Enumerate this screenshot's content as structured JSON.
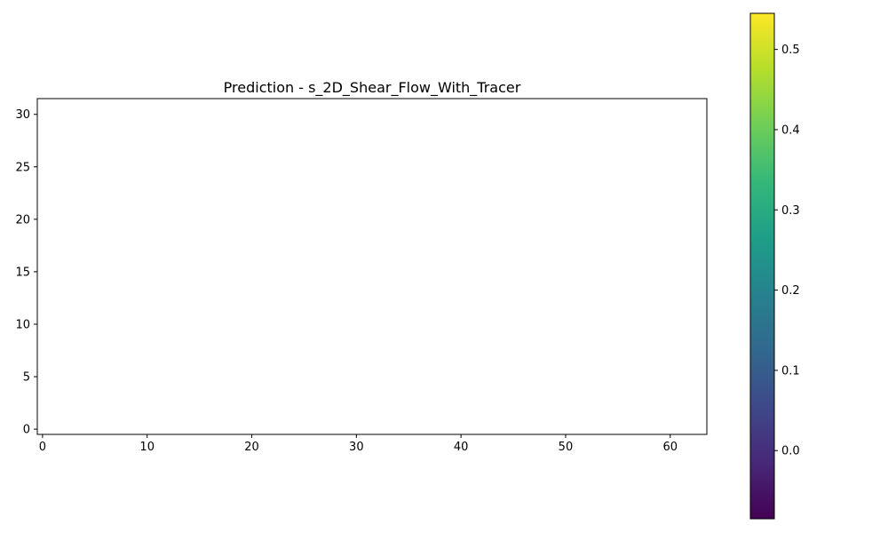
{
  "chart_data": {
    "type": "heatmap",
    "title": "Prediction - s_2D_Shear_Flow_With_Tracer",
    "xlabel": "",
    "ylabel": "",
    "xlim": [
      -0.5,
      63.5
    ],
    "ylim": [
      -0.5,
      31.5
    ],
    "x_ticks": [
      0,
      10,
      20,
      30,
      40,
      50,
      60
    ],
    "y_ticks": [
      0,
      5,
      10,
      15,
      20,
      25,
      30
    ],
    "values": [],
    "colormap": "viridis",
    "colorbar": {
      "range": [
        -0.085,
        0.545
      ],
      "ticks": [
        0.0,
        0.1,
        0.2,
        0.3,
        0.4,
        0.5
      ],
      "tick_labels": [
        "0.0",
        "0.1",
        "0.2",
        "0.3",
        "0.4",
        "0.5"
      ]
    },
    "grid": false
  },
  "colors": {
    "axis": "#000000",
    "background": "#ffffff",
    "viridis": [
      "#440154",
      "#482878",
      "#3e4989",
      "#31688e",
      "#26828e",
      "#1f9e89",
      "#35b779",
      "#6ece58",
      "#b5de2b",
      "#fde725"
    ]
  }
}
